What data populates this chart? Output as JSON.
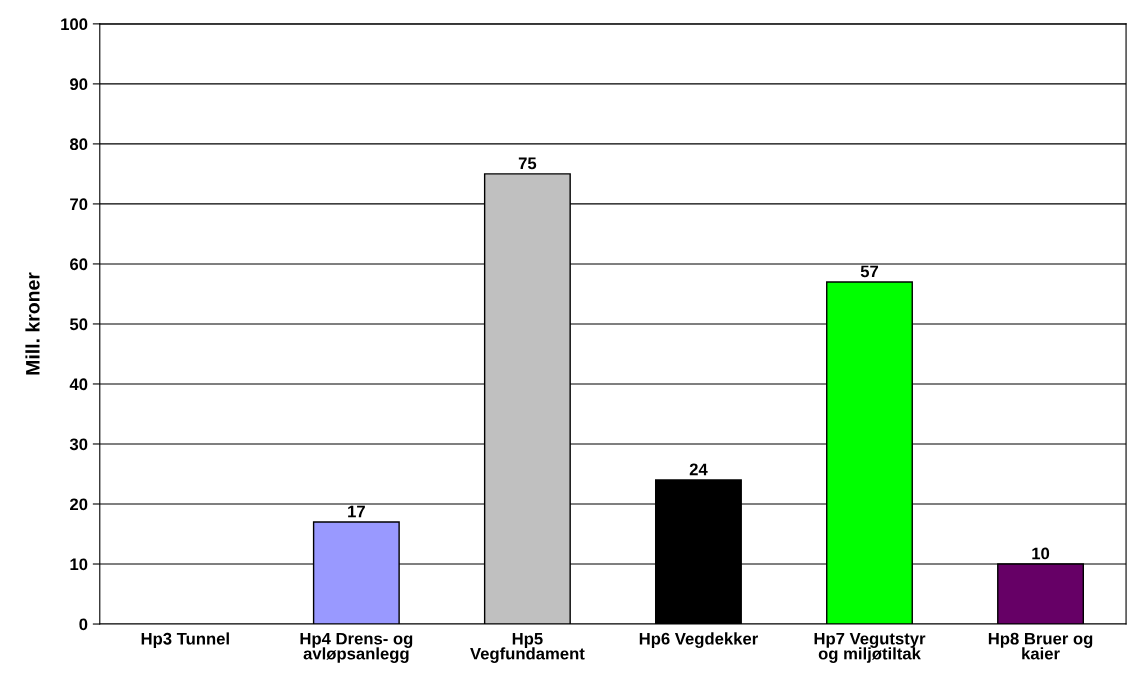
{
  "chart_data": {
    "type": "bar",
    "ylabel": "Mill. kroner",
    "categories": [
      "Hp3 Tunnel",
      "Hp4 Drens- og\navløpsanlegg",
      "Hp5\nVegfundament",
      "Hp6 Vegdekker",
      "Hp7 Vegutstyr\nog miljøtiltak",
      "Hp8 Bruer og\nkaier"
    ],
    "values": [
      null,
      17,
      75,
      24,
      57,
      10
    ],
    "value_labels": [
      null,
      "17",
      "75",
      "24",
      "57",
      "10"
    ],
    "colors": [
      "#9999ff",
      "#9999ff",
      "#c0c0c0",
      "#000000",
      "#00ff00",
      "#660066"
    ],
    "ylim": [
      0,
      100
    ],
    "yticks": [
      0,
      10,
      20,
      30,
      40,
      50,
      60,
      70,
      80,
      90,
      100
    ],
    "grid": "y",
    "legend": false
  }
}
